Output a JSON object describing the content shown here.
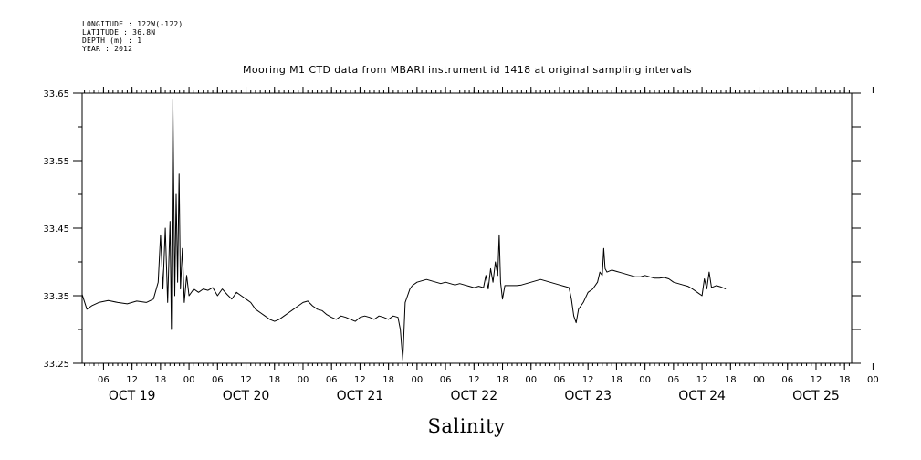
{
  "header": {
    "longitude": "LONGITUDE : 122W(-122)",
    "latitude": "LATITUDE : 36.8N",
    "depth": "DEPTH (m) : 1",
    "year": "YEAR : 2012"
  },
  "chart_data": {
    "type": "line",
    "title": "Mooring M1 CTD data from MBARI instrument id 1418 at original sampling intervals",
    "xlabel": "Salinity",
    "ylabel": "",
    "ylim": [
      33.25,
      33.65
    ],
    "yticks": [
      "33.25",
      "33.35",
      "33.45",
      "33.55",
      "33.65"
    ],
    "xlim_hours": [
      1.5,
      163.5
    ],
    "hour_ticks": [
      "06",
      "12",
      "18",
      "00",
      "06",
      "12",
      "18",
      "00",
      "06",
      "12",
      "18",
      "00",
      "06",
      "12",
      "18",
      "00",
      "06",
      "12",
      "18",
      "00",
      "06",
      "12",
      "18",
      "00",
      "06",
      "12",
      "18",
      "00"
    ],
    "day_labels": [
      "OCT 19",
      "OCT 20",
      "OCT 21",
      "OCT 22",
      "OCT 23",
      "OCT 24",
      "OCT 25"
    ],
    "grid": false,
    "series": [
      {
        "points": [
          [
            1.5,
            33.352
          ],
          [
            2.5,
            33.33
          ],
          [
            3.5,
            33.335
          ],
          [
            5,
            33.34
          ],
          [
            7,
            33.343
          ],
          [
            9,
            33.34
          ],
          [
            11,
            33.338
          ],
          [
            13,
            33.342
          ],
          [
            15,
            33.34
          ],
          [
            16.5,
            33.345
          ],
          [
            17.5,
            33.37
          ],
          [
            18,
            33.44
          ],
          [
            18.5,
            33.36
          ],
          [
            19,
            33.45
          ],
          [
            19.5,
            33.34
          ],
          [
            20,
            33.46
          ],
          [
            20.3,
            33.3
          ],
          [
            20.6,
            33.64
          ],
          [
            21,
            33.35
          ],
          [
            21.3,
            33.5
          ],
          [
            21.6,
            33.37
          ],
          [
            21.9,
            33.53
          ],
          [
            22.2,
            33.36
          ],
          [
            22.6,
            33.42
          ],
          [
            23,
            33.34
          ],
          [
            23.5,
            33.38
          ],
          [
            24,
            33.35
          ],
          [
            25,
            33.36
          ],
          [
            26,
            33.355
          ],
          [
            27,
            33.36
          ],
          [
            28,
            33.358
          ],
          [
            29,
            33.362
          ],
          [
            30,
            33.35
          ],
          [
            31,
            33.36
          ],
          [
            32,
            33.352
          ],
          [
            33,
            33.345
          ],
          [
            34,
            33.355
          ],
          [
            35,
            33.35
          ],
          [
            36,
            33.345
          ],
          [
            37,
            33.34
          ],
          [
            38,
            33.33
          ],
          [
            39,
            33.325
          ],
          [
            40,
            33.32
          ],
          [
            41,
            33.315
          ],
          [
            42,
            33.312
          ],
          [
            43,
            33.315
          ],
          [
            44,
            33.32
          ],
          [
            45,
            33.325
          ],
          [
            46,
            33.33
          ],
          [
            47,
            33.335
          ],
          [
            48,
            33.34
          ],
          [
            49,
            33.342
          ],
          [
            50,
            33.335
          ],
          [
            51,
            33.33
          ],
          [
            52,
            33.328
          ],
          [
            53,
            33.322
          ],
          [
            54,
            33.318
          ],
          [
            55,
            33.315
          ],
          [
            56,
            33.32
          ],
          [
            57,
            33.318
          ],
          [
            58,
            33.315
          ],
          [
            59,
            33.312
          ],
          [
            60,
            33.318
          ],
          [
            61,
            33.32
          ],
          [
            62,
            33.318
          ],
          [
            63,
            33.315
          ],
          [
            64,
            33.32
          ],
          [
            65,
            33.318
          ],
          [
            66,
            33.315
          ],
          [
            67,
            33.32
          ],
          [
            68,
            33.318
          ],
          [
            68.5,
            33.3
          ],
          [
            69,
            33.255
          ],
          [
            69.5,
            33.34
          ],
          [
            70,
            33.35
          ],
          [
            70.5,
            33.36
          ],
          [
            71,
            33.365
          ],
          [
            72,
            33.37
          ],
          [
            73,
            33.372
          ],
          [
            74,
            33.374
          ],
          [
            75,
            33.372
          ],
          [
            76,
            33.37
          ],
          [
            77,
            33.368
          ],
          [
            78,
            33.37
          ],
          [
            79,
            33.368
          ],
          [
            80,
            33.366
          ],
          [
            81,
            33.368
          ],
          [
            82,
            33.366
          ],
          [
            83,
            33.364
          ],
          [
            84,
            33.362
          ],
          [
            85,
            33.364
          ],
          [
            86,
            33.362
          ],
          [
            86.5,
            33.38
          ],
          [
            87,
            33.36
          ],
          [
            87.5,
            33.39
          ],
          [
            88,
            33.37
          ],
          [
            88.5,
            33.4
          ],
          [
            89,
            33.38
          ],
          [
            89.3,
            33.44
          ],
          [
            89.6,
            33.37
          ],
          [
            90,
            33.345
          ],
          [
            90.5,
            33.365
          ],
          [
            91,
            33.365
          ],
          [
            92,
            33.365
          ],
          [
            93,
            33.365
          ],
          [
            94,
            33.366
          ],
          [
            95,
            33.368
          ],
          [
            96,
            33.37
          ],
          [
            97,
            33.372
          ],
          [
            98,
            33.374
          ],
          [
            99,
            33.372
          ],
          [
            100,
            33.37
          ],
          [
            101,
            33.368
          ],
          [
            102,
            33.366
          ],
          [
            103,
            33.364
          ],
          [
            104,
            33.362
          ],
          [
            104.5,
            33.345
          ],
          [
            105,
            33.32
          ],
          [
            105.5,
            33.31
          ],
          [
            106,
            33.33
          ],
          [
            107,
            33.34
          ],
          [
            108,
            33.355
          ],
          [
            109,
            33.36
          ],
          [
            110,
            33.37
          ],
          [
            110.5,
            33.385
          ],
          [
            111,
            33.38
          ],
          [
            111.3,
            33.42
          ],
          [
            111.6,
            33.39
          ],
          [
            112,
            33.385
          ],
          [
            113,
            33.388
          ],
          [
            114,
            33.386
          ],
          [
            115,
            33.384
          ],
          [
            116,
            33.382
          ],
          [
            117,
            33.38
          ],
          [
            118,
            33.378
          ],
          [
            119,
            33.378
          ],
          [
            120,
            33.38
          ],
          [
            121,
            33.378
          ],
          [
            122,
            33.376
          ],
          [
            123,
            33.376
          ],
          [
            124,
            33.377
          ],
          [
            125,
            33.375
          ],
          [
            126,
            33.37
          ],
          [
            127,
            33.368
          ],
          [
            128,
            33.366
          ],
          [
            129,
            33.364
          ],
          [
            130,
            33.36
          ],
          [
            131,
            33.355
          ],
          [
            132,
            33.35
          ],
          [
            132.5,
            33.375
          ],
          [
            133,
            33.36
          ],
          [
            133.5,
            33.385
          ],
          [
            134,
            33.362
          ],
          [
            135,
            33.365
          ],
          [
            136,
            33.363
          ],
          [
            137,
            33.36
          ]
        ]
      }
    ]
  }
}
